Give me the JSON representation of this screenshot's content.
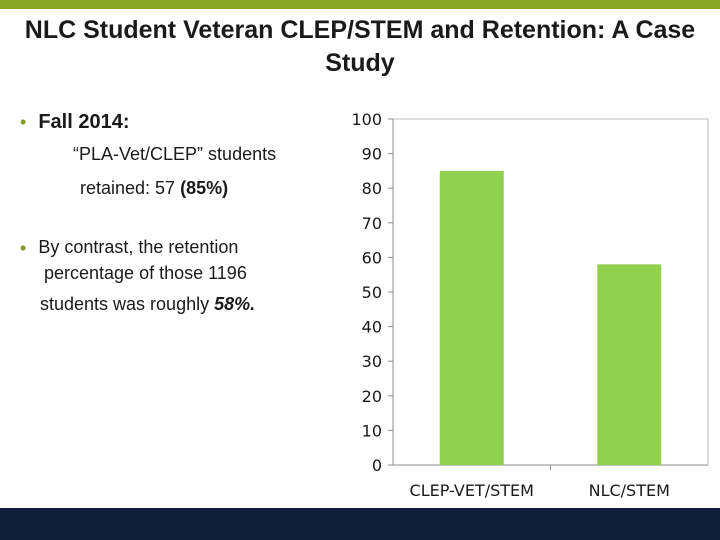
{
  "slide": {
    "title": "NLC Student Veteran CLEP/STEM and Retention: A Case Study",
    "bullet1": {
      "heading": "Fall 2014:",
      "line1": "“PLA-Vet/CLEP” students",
      "line2_prefix": "retained: 57 ",
      "line2_bold": "(85%)"
    },
    "bullet2": {
      "line1": "By contrast, the retention",
      "line2": "percentage of those 1196",
      "line3_prefix": "students was roughly ",
      "line3_emphasis": "58%."
    }
  },
  "chart_data": {
    "type": "bar",
    "categories": [
      "CLEP-VET/STEM",
      "NLC/STEM"
    ],
    "values": [
      85,
      58
    ],
    "ylim": [
      0,
      100
    ],
    "yticks": [
      0,
      10,
      20,
      30,
      40,
      50,
      60,
      70,
      80,
      90,
      100
    ],
    "title": "",
    "xlabel": "",
    "ylabel": "",
    "bar_color": "#92d050",
    "grid": false
  },
  "colors": {
    "accent": "#8aa624",
    "footer": "#0f1c3a"
  }
}
